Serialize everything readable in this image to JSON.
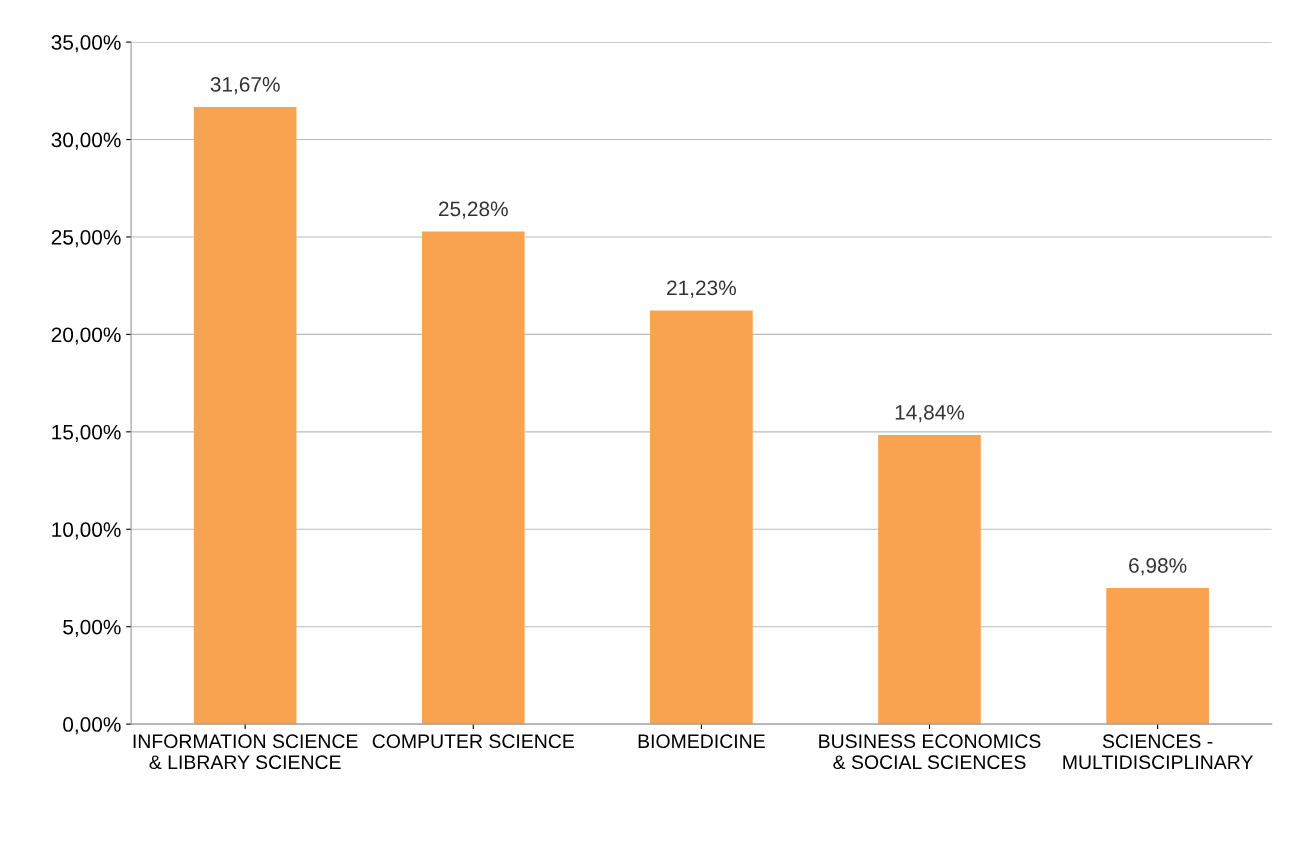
{
  "chart_data": {
    "type": "bar",
    "categories": [
      "INFORMATION SCIENCE\n& LIBRARY SCIENCE",
      "COMPUTER SCIENCE",
      "BIOMEDICINE",
      "BUSINESS ECONOMICS\n& SOCIAL SCIENCES",
      "SCIENCES -\nMULTIDISCIPLINARY"
    ],
    "values": [
      31.67,
      25.28,
      21.23,
      14.84,
      6.98
    ],
    "value_labels": [
      "31,67%",
      "25,28%",
      "21,23%",
      "14,84%",
      "6,98%"
    ],
    "color": "#f9a24f",
    "ylim": [
      0,
      35
    ],
    "yticks": [
      {
        "value": 0,
        "label": "0,00%"
      },
      {
        "value": 5,
        "label": "5,00%"
      },
      {
        "value": 10,
        "label": "10,00%"
      },
      {
        "value": 15,
        "label": "15,00%"
      },
      {
        "value": 20,
        "label": "20,00%"
      },
      {
        "value": 25,
        "label": "25,00%"
      },
      {
        "value": 30,
        "label": "30,00%"
      },
      {
        "value": 35,
        "label": "35,00%"
      }
    ],
    "grid": "y"
  }
}
